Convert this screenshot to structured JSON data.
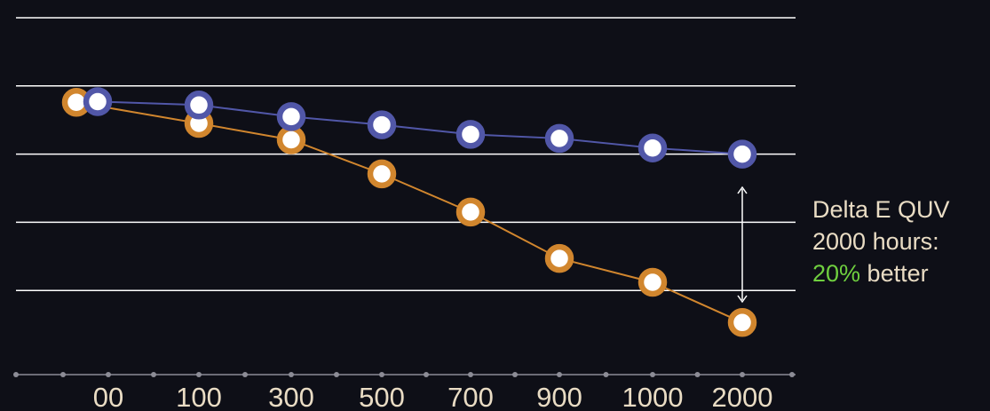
{
  "chart_data": {
    "type": "line",
    "title": "",
    "xlabel": "",
    "ylabel": "",
    "categories": [
      "00",
      "100",
      "300",
      "500",
      "700",
      "900",
      "1000",
      "2000"
    ],
    "ylim": [
      0,
      5
    ],
    "grid": true,
    "series": [
      {
        "color": "#d1862e",
        "values": [
          3.76,
          3.45,
          3.21,
          2.71,
          2.15,
          1.47,
          1.12,
          0.53
        ]
      },
      {
        "color": "#5157a8",
        "values": [
          3.77,
          3.72,
          3.55,
          3.43,
          3.29,
          3.23,
          3.09,
          3.0
        ]
      }
    ]
  },
  "annotation": {
    "line1": "Delta E QUV",
    "line2": "2000 hours:",
    "highlight": "20%",
    "rest": " better"
  },
  "colors": {
    "background": "#0e0f17",
    "grid": "#ffffff",
    "text": "#e9dcc4",
    "highlight": "#6fcf3f"
  }
}
